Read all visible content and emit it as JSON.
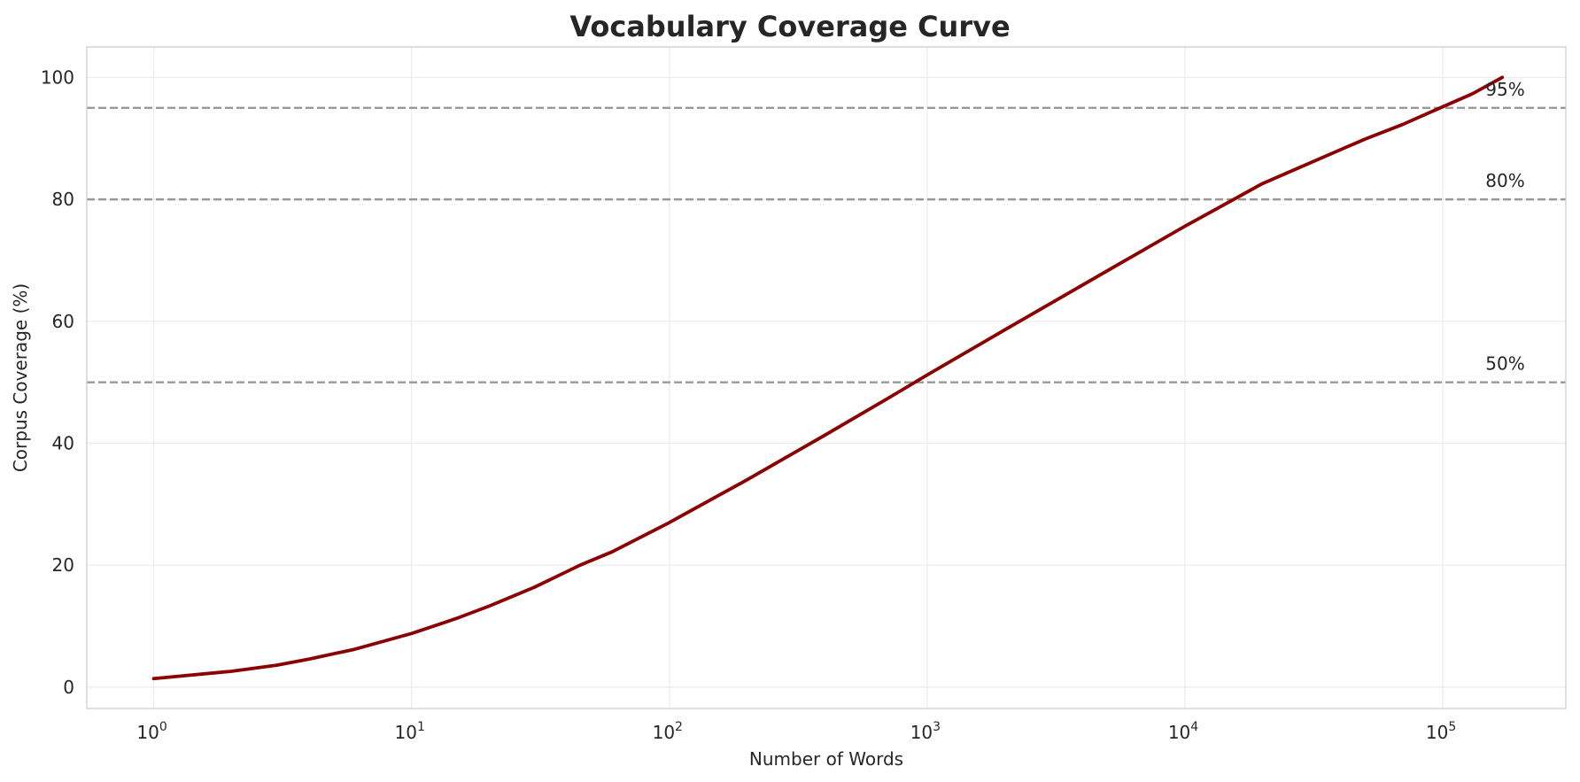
{
  "chart_data": {
    "type": "line",
    "title": "Vocabulary Coverage Curve",
    "xlabel": "Number of Words",
    "ylabel": "Corpus Coverage (%)",
    "xscale": "log",
    "xlim": [
      0.55,
      300000
    ],
    "ylim": [
      -3.5,
      105
    ],
    "grid": true,
    "x_ticks": [
      {
        "value": 1,
        "base": "10",
        "exp": "0"
      },
      {
        "value": 10,
        "base": "10",
        "exp": "1"
      },
      {
        "value": 100,
        "base": "10",
        "exp": "2"
      },
      {
        "value": 1000,
        "base": "10",
        "exp": "3"
      },
      {
        "value": 10000,
        "base": "10",
        "exp": "4"
      },
      {
        "value": 100000,
        "base": "10",
        "exp": "5"
      }
    ],
    "y_ticks": [
      0,
      20,
      40,
      60,
      80,
      100
    ],
    "series": [
      {
        "color": "#8b0000",
        "x": [
          1,
          2,
          3,
          4,
          6,
          10,
          15,
          20,
          30,
          45,
          60,
          100,
          200,
          400,
          700,
          1000,
          2000,
          5000,
          10000,
          20000,
          50000,
          70000,
          100000,
          130000,
          170000
        ],
        "y": [
          1.4,
          2.6,
          3.6,
          4.6,
          6.2,
          8.8,
          11.3,
          13.3,
          16.4,
          20.0,
          22.2,
          27.0,
          34.0,
          41.3,
          47.3,
          51.2,
          58.6,
          68.3,
          75.6,
          82.6,
          89.9,
          92.3,
          95.2,
          97.3,
          100.0
        ]
      }
    ],
    "reference_lines": [
      {
        "y": 95,
        "label": "95%",
        "color": "#999999",
        "style": "dashed"
      },
      {
        "y": 80,
        "label": "80%",
        "color": "#999999",
        "style": "dashed"
      },
      {
        "y": 50,
        "label": "50%",
        "color": "#999999",
        "style": "dashed"
      }
    ],
    "annotation_x": 130000
  }
}
